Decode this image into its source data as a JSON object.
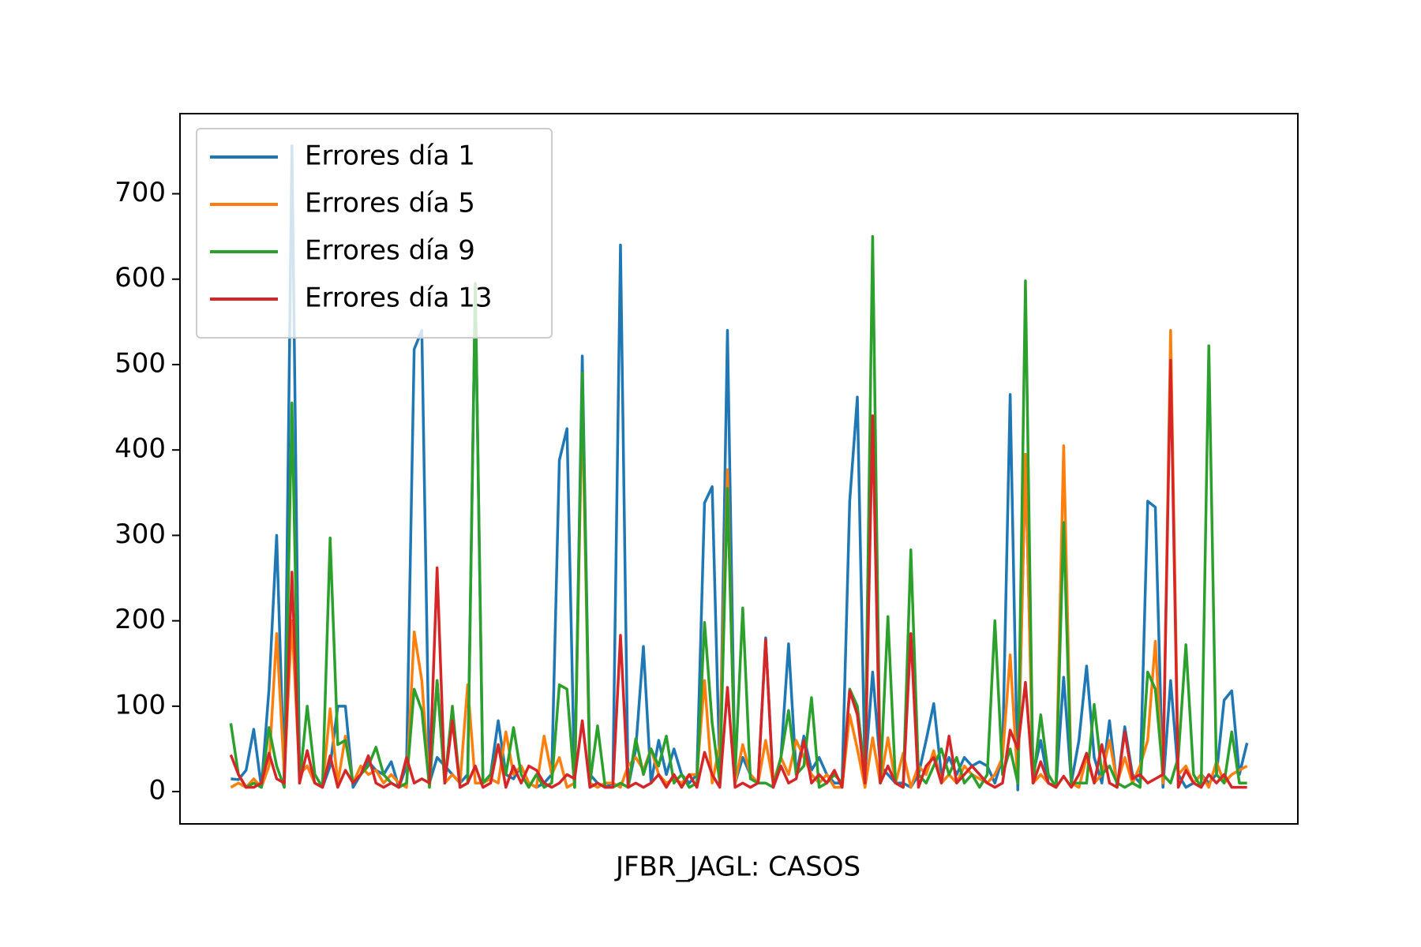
{
  "chart_data": {
    "type": "line",
    "xlabel": "JFBR_JAGL: CASOS",
    "ylim": [
      -37.8,
      793.8
    ],
    "yticks": [
      0,
      100,
      200,
      300,
      400,
      500,
      600,
      700
    ],
    "legend": "upper left",
    "series": [
      {
        "name": "Errores día 1",
        "color": "#1f77b4",
        "values": [
          15,
          14,
          25,
          73,
          5,
          120,
          300,
          10,
          756,
          20,
          30,
          10,
          5,
          30,
          100,
          100,
          5,
          20,
          35,
          25,
          20,
          35,
          5,
          30,
          518,
          540,
          10,
          40,
          30,
          20,
          10,
          20,
          590,
          10,
          20,
          83,
          20,
          15,
          30,
          10,
          5,
          10,
          20,
          388,
          425,
          5,
          510,
          20,
          10,
          5,
          10,
          640,
          5,
          50,
          170,
          10,
          60,
          20,
          50,
          20,
          10,
          20,
          338,
          357,
          20,
          540,
          10,
          40,
          20,
          10,
          180,
          5,
          40,
          173,
          20,
          65,
          25,
          40,
          20,
          10,
          10,
          340,
          462,
          20,
          140,
          30,
          20,
          10,
          10,
          5,
          20,
          60,
          103,
          20,
          40,
          20,
          40,
          30,
          35,
          30,
          10,
          40,
          465,
          2,
          390,
          20,
          60,
          10,
          5,
          134,
          10,
          60,
          147,
          40,
          10,
          83,
          5,
          76,
          20,
          10,
          340,
          333,
          5,
          130,
          20,
          5,
          10,
          20,
          10,
          20,
          107,
          118,
          20,
          57
        ]
      },
      {
        "name": "Errores día 5",
        "color": "#ff7f0e",
        "values": [
          5,
          10,
          5,
          15,
          5,
          30,
          185,
          20,
          200,
          20,
          30,
          10,
          5,
          97,
          10,
          65,
          10,
          30,
          20,
          25,
          10,
          20,
          10,
          5,
          187,
          130,
          5,
          130,
          10,
          20,
          10,
          125,
          10,
          10,
          15,
          10,
          70,
          20,
          30,
          10,
          5,
          65,
          20,
          40,
          5,
          10,
          460,
          10,
          5,
          10,
          10,
          5,
          30,
          40,
          25,
          50,
          20,
          10,
          15,
          10,
          20,
          20,
          130,
          10,
          55,
          377,
          10,
          55,
          20,
          10,
          60,
          10,
          40,
          20,
          60,
          40,
          20,
          10,
          20,
          5,
          5,
          90,
          50,
          5,
          63,
          10,
          63,
          10,
          45,
          5,
          30,
          20,
          48,
          10,
          20,
          10,
          30,
          20,
          15,
          10,
          20,
          40,
          160,
          10,
          395,
          10,
          20,
          10,
          5,
          405,
          10,
          5,
          40,
          10,
          20,
          60,
          10,
          40,
          10,
          30,
          60,
          176,
          10,
          540,
          20,
          30,
          10,
          20,
          5,
          35,
          10,
          20,
          25,
          30
        ]
      },
      {
        "name": "Errores día 9",
        "color": "#2ca02c",
        "values": [
          80,
          20,
          5,
          10,
          5,
          75,
          30,
          5,
          455,
          10,
          100,
          20,
          5,
          297,
          55,
          60,
          10,
          20,
          30,
          52,
          20,
          10,
          5,
          10,
          120,
          95,
          5,
          130,
          10,
          100,
          5,
          10,
          595,
          10,
          20,
          55,
          20,
          75,
          20,
          5,
          20,
          5,
          10,
          125,
          120,
          5,
          490,
          10,
          77,
          5,
          5,
          10,
          5,
          62,
          20,
          50,
          30,
          65,
          10,
          20,
          5,
          10,
          198,
          80,
          10,
          355,
          20,
          215,
          15,
          10,
          10,
          5,
          40,
          95,
          20,
          30,
          110,
          5,
          10,
          20,
          10,
          120,
          100,
          20,
          650,
          10,
          205,
          10,
          5,
          283,
          20,
          10,
          30,
          50,
          20,
          40,
          10,
          20,
          5,
          20,
          200,
          20,
          50,
          10,
          598,
          10,
          90,
          20,
          5,
          315,
          10,
          10,
          10,
          102,
          20,
          30,
          10,
          5,
          10,
          5,
          140,
          120,
          20,
          10,
          40,
          172,
          20,
          5,
          522,
          20,
          10,
          70,
          10,
          10
        ]
      },
      {
        "name": "Errores día 13",
        "color": "#d62728",
        "values": [
          43,
          20,
          5,
          5,
          10,
          45,
          15,
          10,
          257,
          10,
          48,
          10,
          5,
          42,
          5,
          25,
          10,
          20,
          42,
          10,
          5,
          10,
          5,
          40,
          10,
          15,
          10,
          262,
          10,
          83,
          5,
          10,
          30,
          5,
          10,
          55,
          5,
          30,
          10,
          30,
          25,
          10,
          5,
          10,
          20,
          15,
          83,
          5,
          10,
          5,
          5,
          183,
          5,
          10,
          5,
          10,
          20,
          5,
          20,
          5,
          20,
          5,
          46,
          20,
          5,
          122,
          5,
          10,
          5,
          10,
          178,
          5,
          30,
          10,
          15,
          60,
          10,
          20,
          10,
          25,
          5,
          118,
          90,
          10,
          440,
          10,
          30,
          10,
          5,
          185,
          5,
          30,
          40,
          10,
          65,
          10,
          20,
          30,
          20,
          10,
          5,
          10,
          72,
          50,
          128,
          10,
          35,
          10,
          5,
          18,
          5,
          20,
          45,
          10,
          55,
          10,
          5,
          70,
          15,
          20,
          10,
          15,
          20,
          505,
          5,
          25,
          10,
          5,
          20,
          10,
          20,
          5,
          5,
          5
        ]
      }
    ]
  }
}
